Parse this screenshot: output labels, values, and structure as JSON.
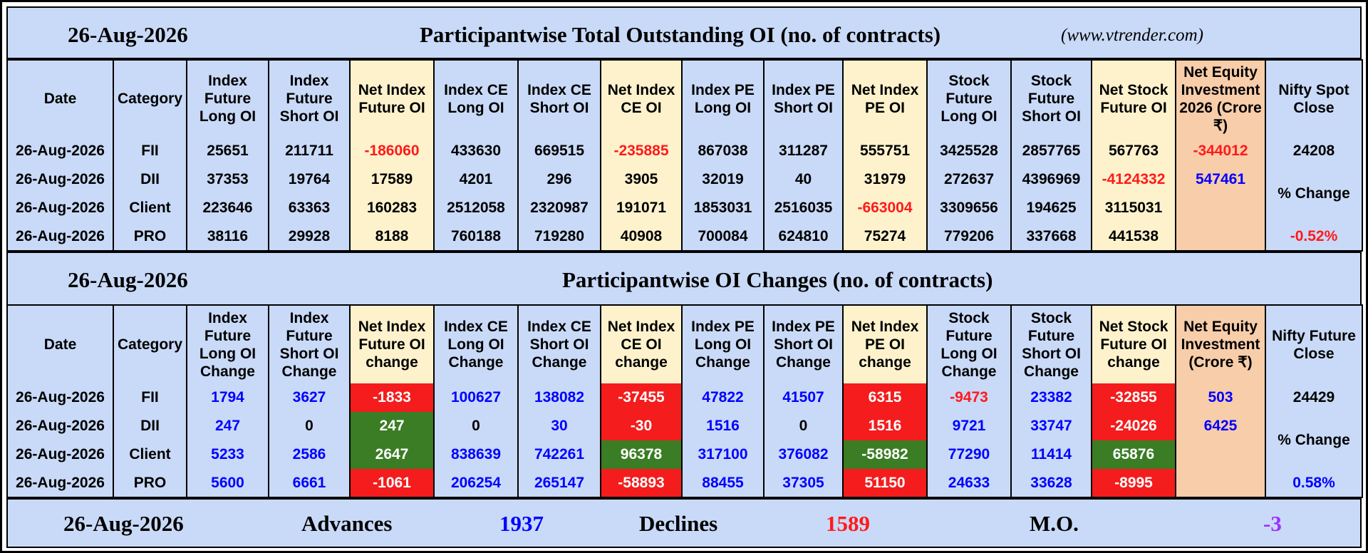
{
  "section1": {
    "date": "26-Aug-2026",
    "title": "Participantwise Total Outstanding OI (no. of contracts)",
    "site": "(www.vtrender.com)",
    "headers": [
      "Date",
      "Category",
      "Index Future Long OI",
      "Index Future Short OI",
      "Net Index Future OI",
      "Index CE Long OI",
      "Index CE Short OI",
      "Net Index CE OI",
      "Index PE Long OI",
      "Index PE Short OI",
      "Net Index PE OI",
      "Stock Future Long OI",
      "Stock Future Short OI",
      "Net Stock Future OI",
      "Net Equity Investment 2026 (Crore ₹)",
      "Nifty Spot Close"
    ],
    "rows": [
      {
        "date": "26-Aug-2026",
        "cat": "FII",
        "v": [
          "25651",
          "211711",
          "-186060",
          "433630",
          "669515",
          "-235885",
          "867038",
          "311287",
          "555751",
          "3425528",
          "2857765",
          "567763",
          "-344012"
        ]
      },
      {
        "date": "26-Aug-2026",
        "cat": "DII",
        "v": [
          "37353",
          "19764",
          "17589",
          "4201",
          "296",
          "3905",
          "32019",
          "40",
          "31979",
          "272637",
          "4396969",
          "-4124332",
          "547461"
        ]
      },
      {
        "date": "26-Aug-2026",
        "cat": "Client",
        "v": [
          "223646",
          "63363",
          "160283",
          "2512058",
          "2320987",
          "191071",
          "1853031",
          "2516035",
          "-663004",
          "3309656",
          "194625",
          "3115031",
          ""
        ]
      },
      {
        "date": "26-Aug-2026",
        "cat": "PRO",
        "v": [
          "38116",
          "29928",
          "8188",
          "760188",
          "719280",
          "40908",
          "700084",
          "624810",
          "75274",
          "779206",
          "337668",
          "441538",
          ""
        ]
      }
    ],
    "nifty_value": "24208",
    "nifty_change_label": "% Change",
    "nifty_change": "-0.52%"
  },
  "section2": {
    "date": "26-Aug-2026",
    "title": "Participantwise OI Changes (no. of contracts)",
    "headers": [
      "Date",
      "Category",
      "Index Future Long OI Change",
      "Index Future Short OI Change",
      "Net Index Future OI change",
      "Index CE Long OI Change",
      "Index CE Short OI Change",
      "Net Index CE OI change",
      "Index PE Long OI Change",
      "Index PE Short OI Change",
      "Net Index PE OI change",
      "Stock Future Long OI Change",
      "Stock Future Short OI Change",
      "Net Stock Future OI change",
      "Net Equity Investment (Crore ₹)",
      "Nifty Future Close"
    ],
    "rows": [
      {
        "date": "26-Aug-2026",
        "cat": "FII",
        "v": [
          "1794",
          "3627",
          "-1833",
          "100627",
          "138082",
          "-37455",
          "47822",
          "41507",
          "6315",
          "-9473",
          "23382",
          "-32855",
          "503"
        ]
      },
      {
        "date": "26-Aug-2026",
        "cat": "DII",
        "v": [
          "247",
          "0",
          "247",
          "0",
          "30",
          "-30",
          "1516",
          "0",
          "1516",
          "9721",
          "33747",
          "-24026",
          "6425"
        ]
      },
      {
        "date": "26-Aug-2026",
        "cat": "Client",
        "v": [
          "5233",
          "2586",
          "2647",
          "838639",
          "742261",
          "96378",
          "317100",
          "376082",
          "-58982",
          "77290",
          "11414",
          "65876",
          ""
        ]
      },
      {
        "date": "26-Aug-2026",
        "cat": "PRO",
        "v": [
          "5600",
          "6661",
          "-1061",
          "206254",
          "265147",
          "-58893",
          "88455",
          "37305",
          "51150",
          "24633",
          "33628",
          "-8995",
          ""
        ]
      }
    ],
    "nifty_value": "24429",
    "nifty_change_label": "% Change",
    "nifty_change": "0.58%"
  },
  "footer": {
    "date": "26-Aug-2026",
    "advances_label": "Advances",
    "advances": "1937",
    "declines_label": "Declines",
    "declines": "1589",
    "mo_label": "M.O.",
    "mo": "-3"
  },
  "colors": {
    "header_bg": "#c9daf8",
    "net_col_bg": "#fdf2cc",
    "equity_col_bg": "#f8cdaa",
    "negative_text": "#ff1a1a",
    "positive_text": "#0000ff",
    "red_cell": "#f41c1c",
    "green_cell": "#3a7d24",
    "mo_text": "#9b30ff"
  }
}
